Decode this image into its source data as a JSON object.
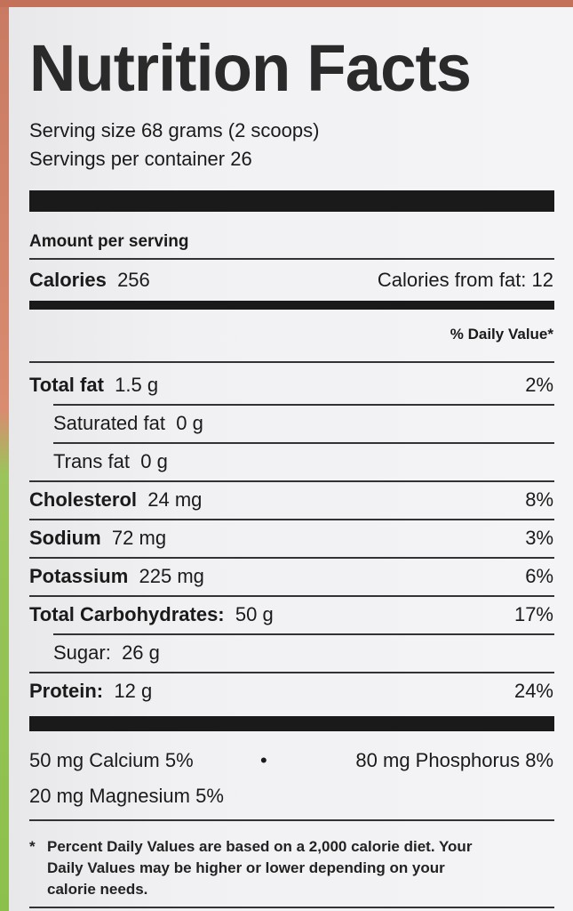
{
  "title": "Nutrition Facts",
  "serving_size": "Serving size  68 grams (2 scoops)",
  "servings_per_container": "Servings per container  26",
  "amount_per_serving": "Amount per serving",
  "calories_label": "Calories",
  "calories_value": "256",
  "calories_from_fat": "Calories from fat: 12",
  "daily_value_header": "% Daily Value*",
  "rows": [
    {
      "label": "Total fat",
      "amount": "1.5 g",
      "dv": "2%",
      "bold": true,
      "indent": false
    },
    {
      "label": "Saturated fat",
      "amount": "0 g",
      "dv": "",
      "bold": false,
      "indent": true
    },
    {
      "label": "Trans fat",
      "amount": "0 g",
      "dv": "",
      "bold": false,
      "indent": true
    },
    {
      "label": "Cholesterol",
      "amount": "24 mg",
      "dv": "8%",
      "bold": true,
      "indent": false
    },
    {
      "label": "Sodium",
      "amount": "72 mg",
      "dv": "3%",
      "bold": true,
      "indent": false
    },
    {
      "label": "Potassium",
      "amount": "225 mg",
      "dv": "6%",
      "bold": true,
      "indent": false
    },
    {
      "label": "Total Carbohydrates:",
      "amount": "50 g",
      "dv": "17%",
      "bold": true,
      "indent": false
    },
    {
      "label": "Sugar:",
      "amount": "26 g",
      "dv": "",
      "bold": false,
      "indent": true
    },
    {
      "label": "Protein:",
      "amount": "12 g",
      "dv": "24%",
      "bold": true,
      "indent": false
    }
  ],
  "minerals": {
    "calcium": "50 mg Calcium 5%",
    "bullet": "•",
    "phosphorus": "80 mg Phosphorus 8%",
    "magnesium": "20 mg Magnesium 5%"
  },
  "footnote": {
    "star": "*",
    "lines": [
      "Percent Daily Values are based on a 2,000 calorie diet. Your",
      "Daily Values may be higher or lower depending on your",
      "calorie needs."
    ]
  }
}
